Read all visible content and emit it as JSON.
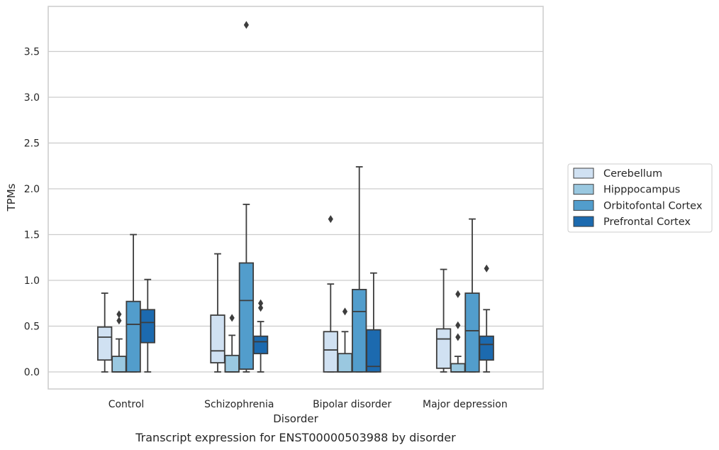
{
  "chart_data": {
    "type": "box",
    "title": "",
    "caption": "Transcript expression for ENST00000503988 by disorder",
    "xlabel": "Disorder",
    "ylabel": "TPMs",
    "ylim": [
      -0.18,
      3.98
    ],
    "yticks": [
      0.0,
      0.5,
      1.0,
      1.5,
      2.0,
      2.5,
      3.0,
      3.5
    ],
    "ytick_labels": [
      "0.0",
      "0.5",
      "1.0",
      "1.5",
      "2.0",
      "2.5",
      "3.0",
      "3.5"
    ],
    "grid": "horizontal",
    "legend_position": "right",
    "categories": [
      "Control",
      "Schizophrenia",
      "Bipolar disorder",
      "Major depression"
    ],
    "series": [
      {
        "name": "Cerebellum",
        "color": "#d0e1f2",
        "boxes": [
          {
            "whislo": 0.0,
            "q1": 0.13,
            "med": 0.38,
            "q3": 0.49,
            "whishi": 0.86,
            "fliers": []
          },
          {
            "whislo": 0.0,
            "q1": 0.1,
            "med": 0.23,
            "q3": 0.62,
            "whishi": 1.29,
            "fliers": []
          },
          {
            "whislo": 0.0,
            "q1": 0.0,
            "med": 0.24,
            "q3": 0.44,
            "whishi": 0.96,
            "fliers": [
              1.67
            ]
          },
          {
            "whislo": 0.0,
            "q1": 0.04,
            "med": 0.36,
            "q3": 0.47,
            "whishi": 1.12,
            "fliers": []
          }
        ]
      },
      {
        "name": "Hipppocampus",
        "color": "#9ac8e0",
        "boxes": [
          {
            "whislo": 0.0,
            "q1": 0.0,
            "med": 0.0,
            "q3": 0.17,
            "whishi": 0.36,
            "fliers": [
              0.56,
              0.63
            ]
          },
          {
            "whislo": 0.0,
            "q1": 0.0,
            "med": 0.0,
            "q3": 0.18,
            "whishi": 0.4,
            "fliers": [
              0.59
            ]
          },
          {
            "whislo": 0.0,
            "q1": 0.0,
            "med": 0.0,
            "q3": 0.2,
            "whishi": 0.44,
            "fliers": [
              0.66
            ]
          },
          {
            "whislo": 0.0,
            "q1": 0.0,
            "med": 0.0,
            "q3": 0.09,
            "whishi": 0.17,
            "fliers": [
              0.38,
              0.51,
              0.85
            ]
          }
        ]
      },
      {
        "name": "Orbitofontal Cortex",
        "color": "#529dcc",
        "boxes": [
          {
            "whislo": 0.0,
            "q1": 0.0,
            "med": 0.52,
            "q3": 0.77,
            "whishi": 1.5,
            "fliers": []
          },
          {
            "whislo": 0.0,
            "q1": 0.03,
            "med": 0.78,
            "q3": 1.19,
            "whishi": 1.83,
            "fliers": [
              3.79
            ]
          },
          {
            "whislo": 0.0,
            "q1": 0.0,
            "med": 0.66,
            "q3": 0.9,
            "whishi": 2.24,
            "fliers": []
          },
          {
            "whislo": 0.0,
            "q1": 0.0,
            "med": 0.45,
            "q3": 0.86,
            "whishi": 1.67,
            "fliers": []
          }
        ]
      },
      {
        "name": "Prefrontal Cortex",
        "color": "#1c6aaf",
        "boxes": [
          {
            "whislo": 0.0,
            "q1": 0.32,
            "med": 0.54,
            "q3": 0.68,
            "whishi": 1.01,
            "fliers": []
          },
          {
            "whislo": 0.0,
            "q1": 0.2,
            "med": 0.33,
            "q3": 0.39,
            "whishi": 0.55,
            "fliers": [
              0.7,
              0.75
            ]
          },
          {
            "whislo": 0.0,
            "q1": 0.0,
            "med": 0.06,
            "q3": 0.46,
            "whishi": 1.08,
            "fliers": []
          },
          {
            "whislo": 0.0,
            "q1": 0.13,
            "med": 0.3,
            "q3": 0.39,
            "whishi": 0.68,
            "fliers": [
              1.13
            ]
          }
        ]
      }
    ]
  }
}
